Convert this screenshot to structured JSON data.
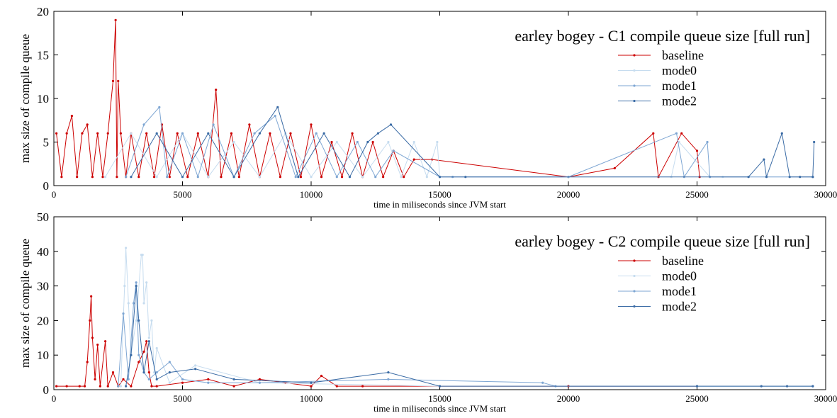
{
  "chart_data": [
    {
      "type": "line",
      "title": "earley bogey - C1 compile queue size [full run]",
      "xlabel": "time in miliseconds since JVM start",
      "ylabel": "max size of compile queue",
      "xlim": [
        0,
        30000
      ],
      "ylim": [
        0,
        20
      ],
      "xticks": [
        0,
        5000,
        10000,
        15000,
        20000,
        25000,
        30000
      ],
      "yticks": [
        0,
        5,
        10,
        15,
        20
      ],
      "series": [
        {
          "name": "baseline",
          "color": "#cc0000",
          "x": [
            100,
            300,
            500,
            700,
            900,
            1100,
            1300,
            1500,
            1700,
            1900,
            2100,
            2300,
            2400,
            2450,
            2500,
            2600,
            2800,
            3000,
            3300,
            3600,
            3900,
            4200,
            4500,
            4800,
            5200,
            5600,
            6000,
            6300,
            6500,
            6900,
            7200,
            7600,
            8000,
            8400,
            8800,
            9200,
            9600,
            10000,
            10400,
            10800,
            11200,
            11600,
            12000,
            12400,
            12800,
            13200,
            13600,
            14000,
            14700,
            20000,
            21800,
            23300,
            23500,
            24400,
            25000,
            25100
          ],
          "values": [
            6,
            1,
            6,
            8,
            1,
            6,
            7,
            1,
            6,
            1,
            6,
            12,
            19,
            1,
            12,
            6,
            1,
            6,
            1,
            6,
            1,
            7,
            1,
            6,
            1,
            6,
            1,
            11,
            1,
            6,
            1,
            7,
            1,
            6,
            1,
            6,
            1,
            7,
            1,
            5,
            1,
            6,
            1,
            5,
            1,
            4,
            1,
            3,
            3,
            1,
            2,
            6,
            1,
            6,
            4,
            1
          ]
        },
        {
          "name": "mode0",
          "color": "#c6dcef",
          "x": [
            2000,
            3000,
            4000,
            5000,
            6000,
            7000,
            8000,
            9000,
            10000,
            11000,
            12000,
            13000,
            13500,
            14000,
            14500,
            14900,
            15000,
            20000,
            24000,
            24300,
            25500,
            26000,
            29500
          ],
          "values": [
            1,
            6,
            1,
            6,
            1,
            5,
            1,
            6,
            1,
            5,
            1,
            5,
            1,
            5,
            1,
            5,
            1,
            1,
            1,
            5,
            1,
            1,
            1
          ]
        },
        {
          "name": "mode1",
          "color": "#7ea6d3",
          "x": [
            2800,
            3500,
            4100,
            4400,
            5000,
            5600,
            6200,
            7000,
            7800,
            8600,
            9400,
            10200,
            11000,
            11800,
            12500,
            13200,
            15000,
            15500,
            20000,
            24200,
            24500,
            25400,
            25500,
            29500
          ],
          "values": [
            1,
            7,
            9,
            1,
            6,
            1,
            7,
            1,
            6,
            8,
            1,
            6,
            1,
            5,
            1,
            4,
            1,
            1,
            1,
            6,
            1,
            5,
            1,
            1
          ]
        },
        {
          "name": "mode2",
          "color": "#3a6ba5",
          "x": [
            3000,
            4000,
            5000,
            6000,
            7000,
            8000,
            8700,
            9500,
            10500,
            11500,
            12200,
            12600,
            13100,
            15000,
            16000,
            27000,
            27600,
            27700,
            28300,
            28600,
            29000,
            29500,
            29550
          ],
          "values": [
            1,
            6,
            1,
            6,
            1,
            6,
            9,
            1,
            6,
            1,
            5,
            6,
            7,
            1,
            1,
            1,
            3,
            1,
            6,
            1,
            1,
            1,
            5
          ]
        }
      ]
    },
    {
      "type": "line",
      "title": "earley bogey - C2 compile queue size [full run]",
      "xlabel": "time in miliseconds since JVM start",
      "ylabel": "max size of compile queue",
      "xlim": [
        0,
        30000
      ],
      "ylim": [
        0,
        50
      ],
      "xticks": [
        0,
        5000,
        10000,
        15000,
        20000,
        25000,
        30000
      ],
      "yticks": [
        0,
        10,
        20,
        30,
        40,
        50
      ],
      "series": [
        {
          "name": "baseline",
          "color": "#cc0000",
          "x": [
            100,
            500,
            1000,
            1200,
            1300,
            1400,
            1450,
            1500,
            1600,
            1700,
            1800,
            2000,
            2100,
            2300,
            2500,
            2700,
            3000,
            3300,
            3500,
            3600,
            3700,
            3800,
            4000,
            5000,
            6000,
            7000,
            8000,
            9000,
            10000,
            10400,
            11000,
            12000,
            15000,
            20000,
            25000
          ],
          "values": [
            1,
            1,
            1,
            1,
            8,
            20,
            27,
            15,
            3,
            13,
            1,
            14,
            1,
            5,
            1,
            3,
            1,
            8,
            11,
            14,
            5,
            1,
            1,
            2,
            3,
            1,
            3,
            2,
            1,
            4,
            1,
            1,
            1,
            1,
            1
          ]
        },
        {
          "name": "mode0",
          "color": "#c6dcef",
          "x": [
            2600,
            2750,
            2800,
            2900,
            3000,
            3200,
            3400,
            3450,
            3500,
            3600,
            3700,
            3800,
            3900,
            4000,
            4500,
            5500,
            8000,
            15000,
            25000,
            29500
          ],
          "values": [
            1,
            30,
            41,
            25,
            10,
            20,
            39,
            39,
            25,
            31,
            15,
            20,
            5,
            12,
            2,
            7,
            2,
            1,
            1,
            1
          ]
        },
        {
          "name": "mode1",
          "color": "#7ea6d3",
          "x": [
            2500,
            2700,
            2900,
            3100,
            3200,
            3300,
            3500,
            3700,
            4000,
            4500,
            5000,
            6000,
            8000,
            13000,
            19000,
            19500,
            25000,
            29500
          ],
          "values": [
            1,
            22,
            3,
            25,
            31,
            10,
            5,
            3,
            5,
            8,
            3,
            2,
            2,
            3,
            2,
            1,
            1,
            1
          ]
        },
        {
          "name": "mode2",
          "color": "#3a6ba5",
          "x": [
            2800,
            3000,
            3200,
            3300,
            3500,
            3700,
            4000,
            4500,
            5500,
            7000,
            10000,
            13000,
            15000,
            25000,
            27500,
            28500,
            29500
          ],
          "values": [
            1,
            10,
            30,
            20,
            5,
            14,
            3,
            5,
            6,
            3,
            2,
            5,
            1,
            1,
            1,
            1,
            1
          ]
        }
      ]
    }
  ]
}
